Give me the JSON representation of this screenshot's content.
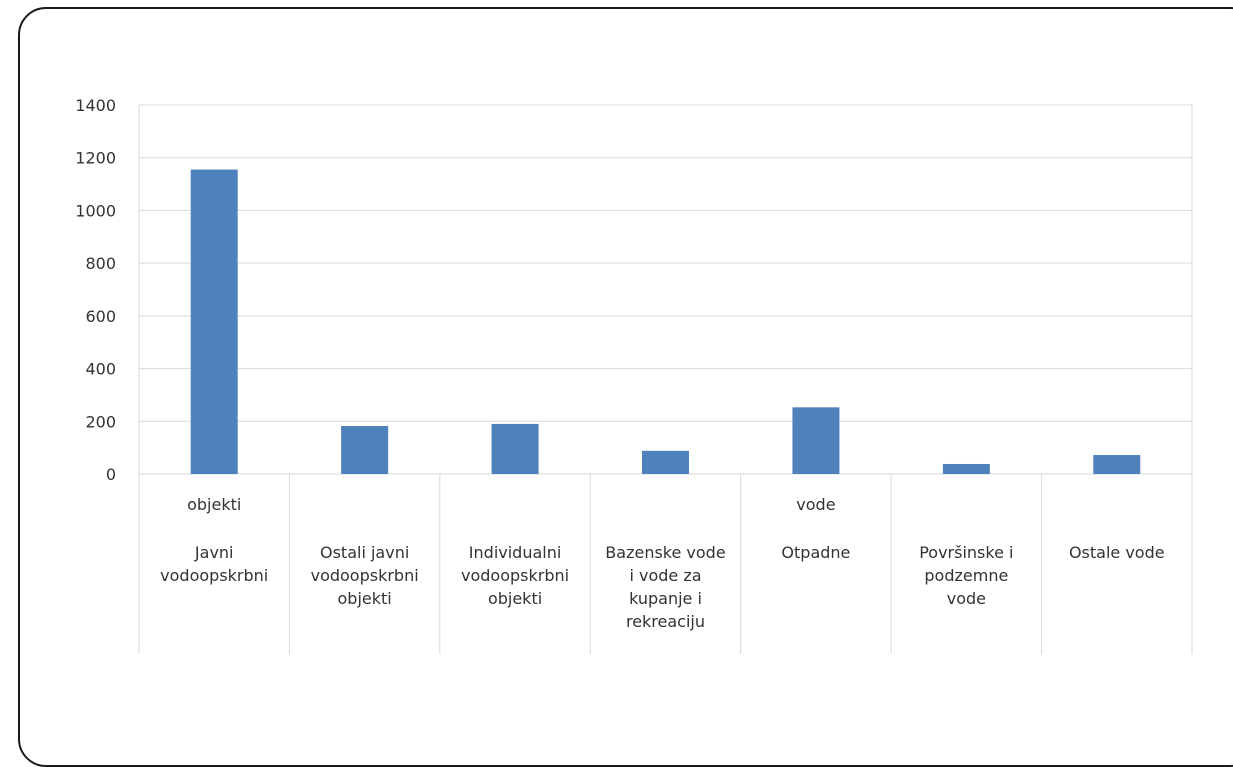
{
  "chart_data": {
    "type": "bar",
    "title": "",
    "xlabel": "",
    "ylabel": "",
    "ylim": [
      0,
      1400
    ],
    "yticks": [
      0,
      200,
      400,
      600,
      800,
      1000,
      1200,
      1400
    ],
    "grid": true,
    "legend": "none",
    "bar_color": "#4f81bd",
    "categories": [
      {
        "label_top": "objekti",
        "label_lines": [
          "Javni",
          "vodoopskrbni"
        ]
      },
      {
        "label_top": "",
        "label_lines": [
          "Ostali javni",
          "vodoopskrbni",
          "objekti"
        ]
      },
      {
        "label_top": "",
        "label_lines": [
          "Individualni",
          "vodoopskrbni",
          "objekti"
        ]
      },
      {
        "label_top": "",
        "label_lines": [
          "Bazenske vode",
          "i vode za",
          "kupanje i",
          "rekreaciju"
        ]
      },
      {
        "label_top": "vode",
        "label_lines": [
          "Otpadne"
        ]
      },
      {
        "label_top": "",
        "label_lines": [
          "Površinske i",
          "podzemne",
          "vode"
        ]
      },
      {
        "label_top": "",
        "label_lines": [
          "Ostale vode"
        ]
      }
    ],
    "values": [
      1155,
      182,
      190,
      88,
      253,
      38,
      72
    ]
  }
}
